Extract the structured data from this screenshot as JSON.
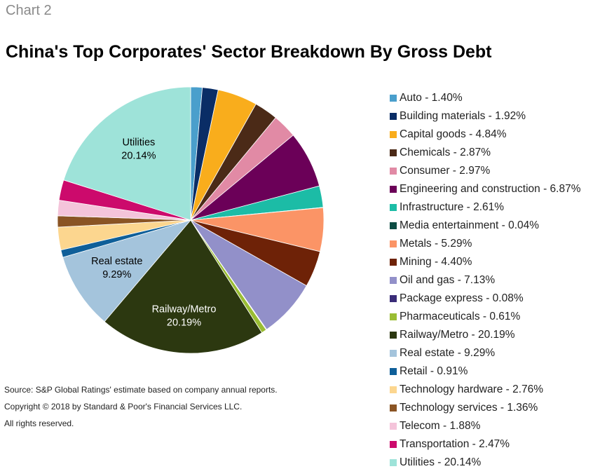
{
  "header": {
    "chart_label": "Chart 2",
    "title": "China's Top Corporates' Sector Breakdown By Gross Debt"
  },
  "chart_data": {
    "type": "pie",
    "title": "China's Top Corporates' Sector Breakdown By Gross Debt",
    "slices": [
      {
        "label": "Auto",
        "value": 1.4,
        "legend": "Auto - 1.40%",
        "color": "#4a9fcc"
      },
      {
        "label": "Building materials",
        "value": 1.92,
        "legend": "Building materials - 1.92%",
        "color": "#0a2d66"
      },
      {
        "label": "Capital goods",
        "value": 4.84,
        "legend": "Capital goods - 4.84%",
        "color": "#f9ad1c"
      },
      {
        "label": "Chemicals",
        "value": 2.87,
        "legend": "Chemicals - 2.87%",
        "color": "#4b2a17"
      },
      {
        "label": "Consumer",
        "value": 2.97,
        "legend": "Consumer - 2.97%",
        "color": "#e18aa5"
      },
      {
        "label": "Engineering and construction",
        "value": 6.87,
        "legend": "Engineering and construction - 6.87%",
        "color": "#6b0058"
      },
      {
        "label": "Infrastructure",
        "value": 2.61,
        "legend": "Infrastructure - 2.61%",
        "color": "#1cbca6"
      },
      {
        "label": "Media entertainment",
        "value": 0.04,
        "legend": "Media entertainment - 0.04%",
        "color": "#0d4d44"
      },
      {
        "label": "Metals",
        "value": 5.29,
        "legend": "Metals - 5.29%",
        "color": "#fb9466"
      },
      {
        "label": "Mining",
        "value": 4.4,
        "legend": "Mining - 4.40%",
        "color": "#6e2207"
      },
      {
        "label": "Oil and gas",
        "value": 7.13,
        "legend": "Oil and gas - 7.13%",
        "color": "#9290c9"
      },
      {
        "label": "Package express",
        "value": 0.08,
        "legend": "Package express - 0.08%",
        "color": "#3a2c78"
      },
      {
        "label": "Pharmaceuticals",
        "value": 0.61,
        "legend": "Pharmaceuticals - 0.61%",
        "color": "#9abd34"
      },
      {
        "label": "Railway/Metro",
        "value": 20.19,
        "legend": "Railway/Metro - 20.19%",
        "color": "#2c3810",
        "pie_label": "Railway/Metro",
        "pie_value": "20.19%",
        "pie_label_color": "#ffffff"
      },
      {
        "label": "Real estate",
        "value": 9.29,
        "legend": "Real estate - 9.29%",
        "color": "#a4c4dc",
        "pie_label": "Real estate",
        "pie_value": "9.29%",
        "pie_label_color": "#000000"
      },
      {
        "label": "Retail",
        "value": 0.91,
        "legend": "Retail - 0.91%",
        "color": "#0f5f99"
      },
      {
        "label": "Technology hardware",
        "value": 2.76,
        "legend": "Technology hardware - 2.76%",
        "color": "#fcd68f"
      },
      {
        "label": "Technology services",
        "value": 1.36,
        "legend": "Technology services - 1.36%",
        "color": "#8a5424"
      },
      {
        "label": "Telecom",
        "value": 1.88,
        "legend": "Telecom - 1.88%",
        "color": "#f4c4da"
      },
      {
        "label": "Transportation",
        "value": 2.47,
        "legend": "Transportation - 2.47%",
        "color": "#cc0a6c"
      },
      {
        "label": "Utilities",
        "value": 20.14,
        "legend": "Utilities - 20.14%",
        "color": "#9ee3d9",
        "pie_label": "Utilities",
        "pie_value": "20.14%",
        "pie_label_color": "#000000"
      }
    ],
    "start": "top",
    "direction": "clockwise",
    "legend_position": "right"
  },
  "footer": {
    "source": "Source: S&P Global Ratings' estimate based on company annual reports.",
    "copyright": "Copyright © 2018 by Standard & Poor's Financial Services LLC.",
    "rights": "All rights reserved."
  }
}
